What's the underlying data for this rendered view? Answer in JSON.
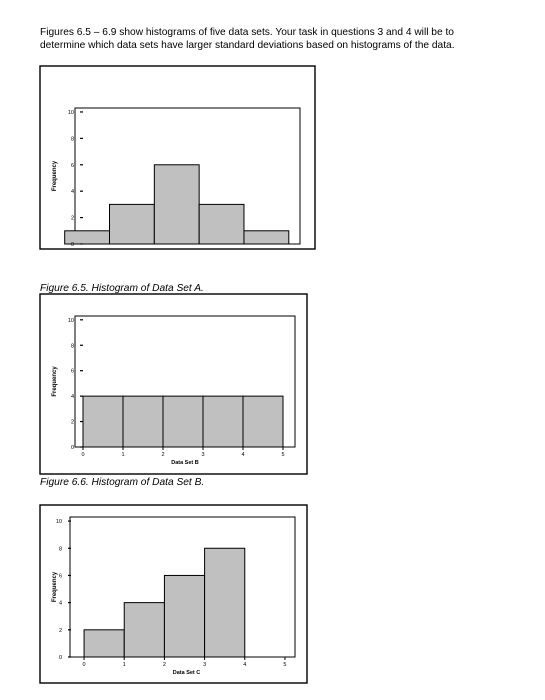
{
  "intro_text": "Figures 6.5 – 6.9 show histograms of five data sets. Your task in questions 3 and 4 will be to determine which data sets have larger standard deviations based on histograms of the data.",
  "chart_data": [
    {
      "type": "bar",
      "ylabel": "Frequency",
      "xlabel": "",
      "yticks": [
        0,
        2,
        4,
        6,
        8,
        10
      ],
      "xticks": [],
      "bins": [
        [
          0,
          1
        ],
        [
          1,
          2
        ],
        [
          2,
          3
        ],
        [
          3,
          4
        ],
        [
          4,
          5
        ]
      ],
      "values": [
        1,
        3,
        6,
        3,
        1
      ],
      "caption": "Figure 6.5. Histogram of Data Set A."
    },
    {
      "type": "bar",
      "ylabel": "Frequency",
      "xlabel": "Data Set B",
      "yticks": [
        0,
        2,
        4,
        6,
        8,
        10
      ],
      "xticks": [
        0,
        1,
        2,
        3,
        4,
        5
      ],
      "bins": [
        [
          0,
          1
        ],
        [
          1,
          2
        ],
        [
          2,
          3
        ],
        [
          3,
          4
        ],
        [
          4,
          5
        ]
      ],
      "values": [
        4,
        4,
        4,
        4,
        4
      ],
      "caption": "Figure 6.6. Histogram of Data Set B."
    },
    {
      "type": "bar",
      "ylabel": "Frequency",
      "xlabel": "Data Set C",
      "yticks": [
        0,
        2,
        4,
        6,
        8,
        10
      ],
      "xticks": [
        0,
        1,
        2,
        3,
        4,
        5
      ],
      "bins": [
        [
          0,
          1
        ],
        [
          1,
          2
        ],
        [
          2,
          3
        ],
        [
          3,
          4
        ],
        [
          4,
          5
        ]
      ],
      "values": [
        2,
        4,
        6,
        8,
        0
      ],
      "caption": ""
    }
  ]
}
